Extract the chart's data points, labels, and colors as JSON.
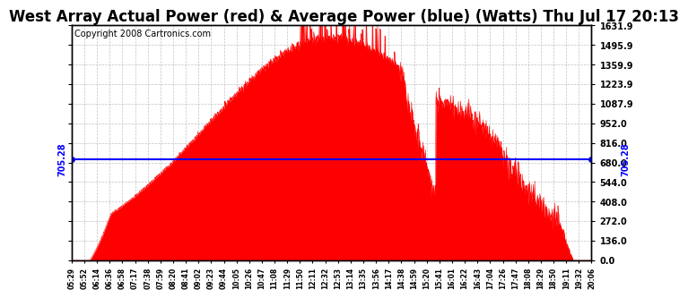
{
  "title": "West Array Actual Power (red) & Average Power (blue) (Watts) Thu Jul 17 20:13",
  "copyright": "Copyright 2008 Cartronics.com",
  "avg_power": 705.28,
  "avg_label": "705.28",
  "yticks": [
    0.0,
    136.0,
    272.0,
    408.0,
    544.0,
    680.0,
    816.0,
    952.0,
    1087.9,
    1223.9,
    1359.9,
    1495.9,
    1631.9
  ],
  "ymax": 1631.9,
  "ymin": 0.0,
  "fill_color": "#FF0000",
  "line_color": "#FF0000",
  "avg_line_color": "#0000FF",
  "background_color": "#FFFFFF",
  "grid_color": "#BBBBBB",
  "title_fontsize": 12,
  "copyright_fontsize": 7,
  "xtick_labels": [
    "05:29",
    "05:52",
    "06:14",
    "06:36",
    "06:58",
    "07:17",
    "07:38",
    "07:59",
    "08:20",
    "08:41",
    "09:02",
    "09:23",
    "09:44",
    "10:05",
    "10:26",
    "10:47",
    "11:08",
    "11:29",
    "11:50",
    "12:11",
    "12:32",
    "12:53",
    "13:14",
    "13:35",
    "13:56",
    "14:17",
    "14:38",
    "14:59",
    "15:20",
    "15:41",
    "16:01",
    "16:22",
    "16:43",
    "17:04",
    "17:26",
    "17:47",
    "18:08",
    "18:29",
    "18:50",
    "19:11",
    "19:32",
    "20:06"
  ]
}
